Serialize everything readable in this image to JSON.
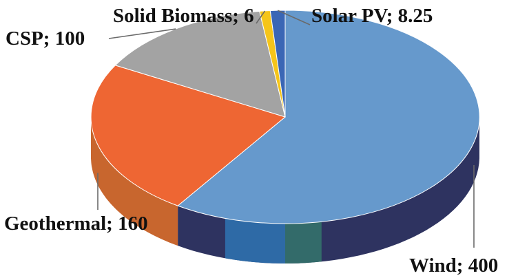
{
  "chart_data": {
    "type": "pie",
    "style": "3d",
    "title": "",
    "slices": [
      {
        "name": "Wind",
        "value": 400,
        "label": "Wind; 400",
        "color": "#6699cc",
        "side_color": "#2e3360"
      },
      {
        "name": "Geothermal",
        "value": 160,
        "label": "Geothermal; 160",
        "color": "#ee6633",
        "side_color": "#c8662e"
      },
      {
        "name": "CSP",
        "value": 100,
        "label": "CSP; 100",
        "color": "#a3a3a3",
        "side_color": "#7f7f7f"
      },
      {
        "name": "Solid Biomass",
        "value": 6,
        "label": "Solid Biomass; 6",
        "color": "#f5c51a",
        "side_color": "#b8930f"
      },
      {
        "name": "Solar PV",
        "value": 8.25,
        "label": "Solar PV; 8.25",
        "color": "#3a66b5",
        "side_color": "#27468a"
      }
    ],
    "legend": false
  }
}
